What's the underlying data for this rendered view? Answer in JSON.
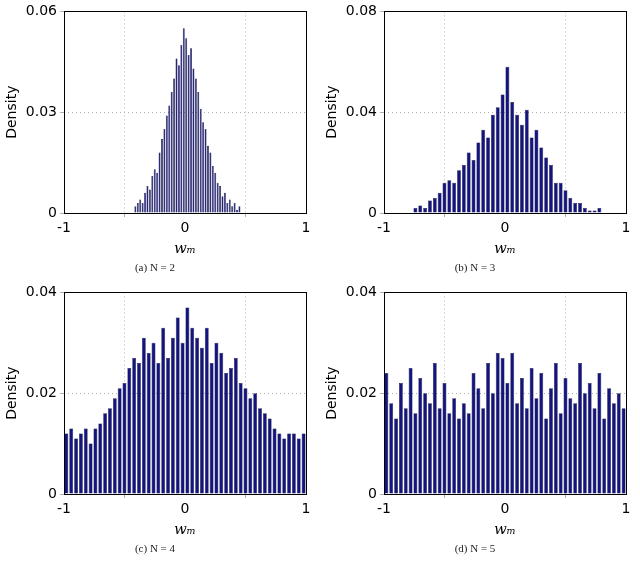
{
  "chart_data": [
    {
      "type": "histogram",
      "title": "(a) N = 2",
      "xlabel": "wₘ",
      "ylabel": "Density",
      "color": "#14147f",
      "grid": true,
      "bins": [
        -0.42,
        -0.4,
        -0.38,
        -0.36,
        -0.34,
        -0.32,
        -0.3,
        -0.28,
        -0.26,
        -0.24,
        -0.22,
        -0.2,
        -0.18,
        -0.16,
        -0.14,
        -0.12,
        -0.1,
        -0.08,
        -0.06,
        -0.04,
        -0.02,
        0,
        0.02,
        0.04,
        0.06,
        0.08,
        0.1,
        0.12,
        0.14,
        0.16,
        0.18,
        0.2,
        0.22,
        0.24,
        0.26,
        0.28,
        0.3,
        0.32,
        0.34,
        0.36,
        0.38,
        0.4,
        0.42,
        0.44,
        0.46
      ],
      "values": [
        0.002,
        0.003,
        0.004,
        0.003,
        0.006,
        0.008,
        0.007,
        0.011,
        0.013,
        0.012,
        0.018,
        0.022,
        0.025,
        0.029,
        0.032,
        0.036,
        0.04,
        0.046,
        0.044,
        0.05,
        0.055,
        0.052,
        0.047,
        0.049,
        0.043,
        0.04,
        0.036,
        0.031,
        0.027,
        0.025,
        0.02,
        0.018,
        0.014,
        0.012,
        0.009,
        0.008,
        0.005,
        0.006,
        0.003,
        0.004,
        0.002,
        0.003,
        0.001,
        0.002
      ],
      "xlim": [
        -1,
        1
      ],
      "xticks": [
        -1,
        0,
        1
      ],
      "ylim": [
        0,
        0.06
      ],
      "yticks": [
        0,
        0.03,
        0.06
      ]
    },
    {
      "type": "histogram",
      "title": "(b) N = 3",
      "xlabel": "wₘ",
      "ylabel": "Density",
      "color": "#14147f",
      "grid": true,
      "bins": [
        -1,
        -0.96,
        -0.92,
        -0.88,
        -0.84,
        -0.8,
        -0.76,
        -0.72,
        -0.68,
        -0.64,
        -0.6,
        -0.56,
        -0.52,
        -0.48,
        -0.44,
        -0.4,
        -0.36,
        -0.32,
        -0.28,
        -0.24,
        -0.2,
        -0.16,
        -0.12,
        -0.08,
        -0.04,
        0,
        0.04,
        0.08,
        0.12,
        0.16,
        0.2,
        0.24,
        0.28,
        0.32,
        0.36,
        0.4,
        0.44,
        0.48,
        0.52,
        0.56,
        0.6,
        0.64,
        0.68,
        0.72,
        0.76,
        0.8,
        0.84,
        0.88,
        0.92,
        0.96,
        1
      ],
      "values": [
        0,
        0,
        0,
        0,
        0,
        0,
        0.002,
        0.003,
        0.002,
        0.005,
        0.006,
        0.008,
        0.012,
        0.013,
        0.012,
        0.017,
        0.019,
        0.024,
        0.021,
        0.028,
        0.033,
        0.03,
        0.039,
        0.042,
        0.047,
        0.058,
        0.044,
        0.039,
        0.035,
        0.041,
        0.03,
        0.033,
        0.026,
        0.022,
        0.019,
        0.012,
        0.012,
        0.009,
        0.006,
        0.004,
        0.004,
        0.002,
        0.001,
        0.001,
        0.002,
        0,
        0,
        0,
        0,
        0
      ],
      "xlim": [
        -1,
        1
      ],
      "xticks": [
        -1,
        0,
        1
      ],
      "ylim": [
        0,
        0.08
      ],
      "yticks": [
        0,
        0.04,
        0.08
      ]
    },
    {
      "type": "histogram",
      "title": "(c) N = 4",
      "xlabel": "wₘ",
      "ylabel": "Density",
      "color": "#14147f",
      "grid": true,
      "bins": [
        -1,
        -0.96,
        -0.92,
        -0.88,
        -0.84,
        -0.8,
        -0.76,
        -0.72,
        -0.68,
        -0.64,
        -0.6,
        -0.56,
        -0.52,
        -0.48,
        -0.44,
        -0.4,
        -0.36,
        -0.32,
        -0.28,
        -0.24,
        -0.2,
        -0.16,
        -0.12,
        -0.08,
        -0.04,
        0,
        0.04,
        0.08,
        0.12,
        0.16,
        0.2,
        0.24,
        0.28,
        0.32,
        0.36,
        0.4,
        0.44,
        0.48,
        0.52,
        0.56,
        0.6,
        0.64,
        0.68,
        0.72,
        0.76,
        0.8,
        0.84,
        0.88,
        0.92,
        0.96,
        1
      ],
      "values": [
        0.012,
        0.013,
        0.011,
        0.012,
        0.013,
        0.01,
        0.013,
        0.014,
        0.016,
        0.017,
        0.019,
        0.021,
        0.022,
        0.025,
        0.027,
        0.026,
        0.031,
        0.028,
        0.03,
        0.026,
        0.033,
        0.027,
        0.031,
        0.035,
        0.03,
        0.037,
        0.033,
        0.031,
        0.029,
        0.033,
        0.026,
        0.03,
        0.028,
        0.024,
        0.025,
        0.027,
        0.022,
        0.021,
        0.019,
        0.02,
        0.017,
        0.016,
        0.015,
        0.013,
        0.012,
        0.011,
        0.012,
        0.012,
        0.011,
        0.012
      ],
      "xlim": [
        -1,
        1
      ],
      "xticks": [
        -1,
        0,
        1
      ],
      "ylim": [
        0,
        0.04
      ],
      "yticks": [
        0,
        0.02,
        0.04
      ]
    },
    {
      "type": "histogram",
      "title": "(d) N = 5",
      "xlabel": "wₘ",
      "ylabel": "Density",
      "color": "#14147f",
      "grid": true,
      "bins": [
        -1,
        -0.96,
        -0.92,
        -0.88,
        -0.84,
        -0.8,
        -0.76,
        -0.72,
        -0.68,
        -0.64,
        -0.6,
        -0.56,
        -0.52,
        -0.48,
        -0.44,
        -0.4,
        -0.36,
        -0.32,
        -0.28,
        -0.24,
        -0.2,
        -0.16,
        -0.12,
        -0.08,
        -0.04,
        0,
        0.04,
        0.08,
        0.12,
        0.16,
        0.2,
        0.24,
        0.28,
        0.32,
        0.36,
        0.4,
        0.44,
        0.48,
        0.52,
        0.56,
        0.6,
        0.64,
        0.68,
        0.72,
        0.76,
        0.8,
        0.84,
        0.88,
        0.92,
        0.96,
        1
      ],
      "values": [
        0.024,
        0.018,
        0.015,
        0.022,
        0.017,
        0.025,
        0.016,
        0.023,
        0.02,
        0.018,
        0.026,
        0.017,
        0.022,
        0.016,
        0.019,
        0.015,
        0.018,
        0.016,
        0.024,
        0.021,
        0.017,
        0.026,
        0.02,
        0.028,
        0.027,
        0.022,
        0.028,
        0.018,
        0.023,
        0.017,
        0.025,
        0.019,
        0.024,
        0.015,
        0.021,
        0.026,
        0.016,
        0.023,
        0.019,
        0.018,
        0.026,
        0.02,
        0.022,
        0.017,
        0.024,
        0.015,
        0.021,
        0.018,
        0.02,
        0.017
      ],
      "xlim": [
        -1,
        1
      ],
      "xticks": [
        -1,
        0,
        1
      ],
      "ylim": [
        0,
        0.04
      ],
      "yticks": [
        0,
        0.02,
        0.04
      ]
    }
  ]
}
